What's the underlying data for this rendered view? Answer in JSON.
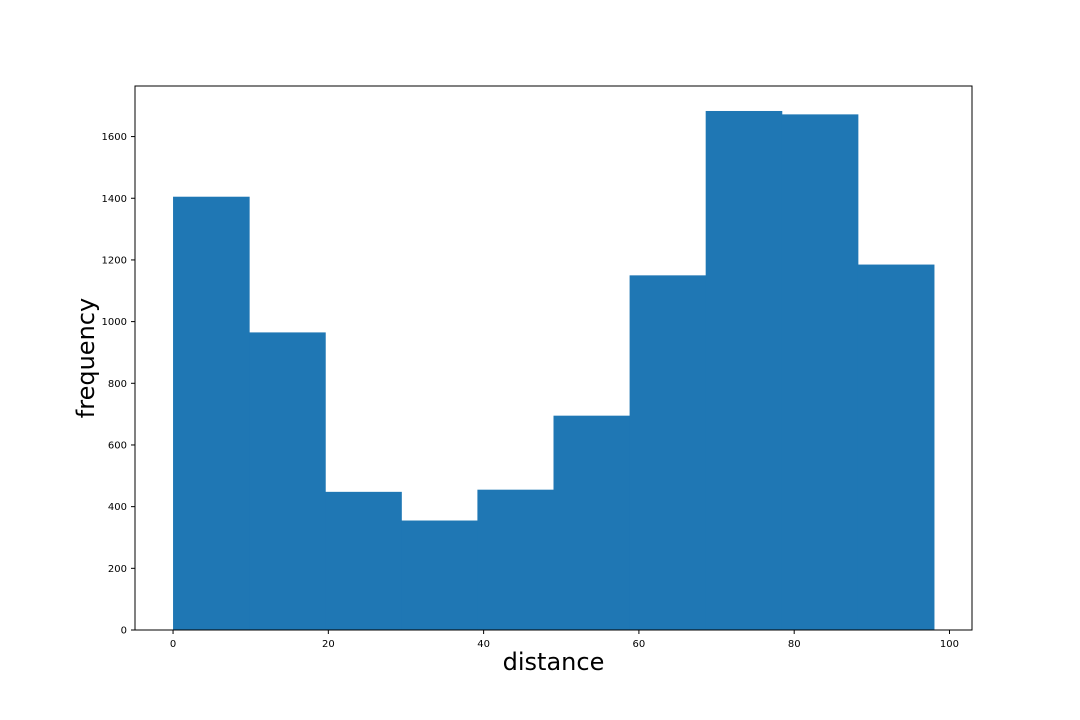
{
  "chart_data": {
    "type": "bar",
    "title": "",
    "xlabel": "distance",
    "ylabel": "frequency",
    "xlim": [
      -4.9,
      102.9
    ],
    "ylim": [
      0,
      1764
    ],
    "xticks": [
      0,
      20,
      40,
      60,
      80,
      100
    ],
    "yticks": [
      0,
      200,
      400,
      600,
      800,
      1000,
      1200,
      1400,
      1600
    ],
    "bins": [
      {
        "x0": 0.0,
        "x1": 9.8,
        "value": 1405
      },
      {
        "x0": 9.8,
        "x1": 19.6,
        "value": 965
      },
      {
        "x0": 19.6,
        "x1": 29.4,
        "value": 448
      },
      {
        "x0": 29.4,
        "x1": 39.2,
        "value": 355
      },
      {
        "x0": 39.2,
        "x1": 49.0,
        "value": 455
      },
      {
        "x0": 49.0,
        "x1": 58.8,
        "value": 695
      },
      {
        "x0": 58.8,
        "x1": 68.6,
        "value": 1150
      },
      {
        "x0": 68.6,
        "x1": 78.4,
        "value": 1683
      },
      {
        "x0": 78.4,
        "x1": 88.2,
        "value": 1672
      },
      {
        "x0": 88.2,
        "x1": 98.0,
        "value": 1185
      }
    ],
    "bar_color": "#1f77b4",
    "grid": false,
    "legend": "none"
  }
}
